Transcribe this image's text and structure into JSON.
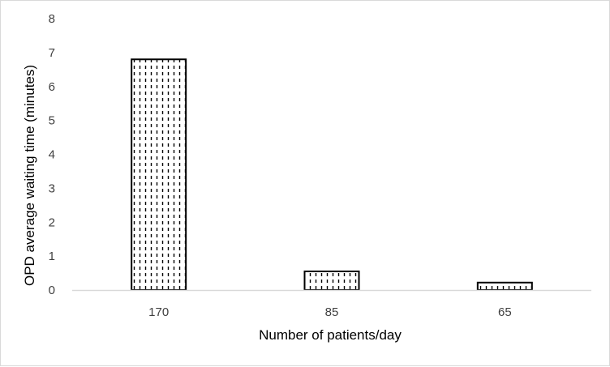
{
  "chart_data": {
    "type": "bar",
    "title": "",
    "categories": [
      "170",
      "85",
      "65"
    ],
    "values": [
      6.8,
      0.55,
      0.22
    ],
    "xlabel": "Number of patients/day",
    "ylabel": "OPD average waiting time (minutes)",
    "ylim": [
      0,
      8
    ],
    "yticks": [
      "0",
      "1",
      "2",
      "3",
      "4",
      "5",
      "6",
      "7",
      "8"
    ],
    "grid": false,
    "legend": "none",
    "bar_fill": "dashed-vertical-pattern",
    "colors": {
      "bar_stroke": "#000000",
      "bar_pattern": "#000000",
      "axis_line": "#d9d9d9",
      "tick_text": "#404040",
      "frame_border": "#d9d9d9"
    }
  }
}
